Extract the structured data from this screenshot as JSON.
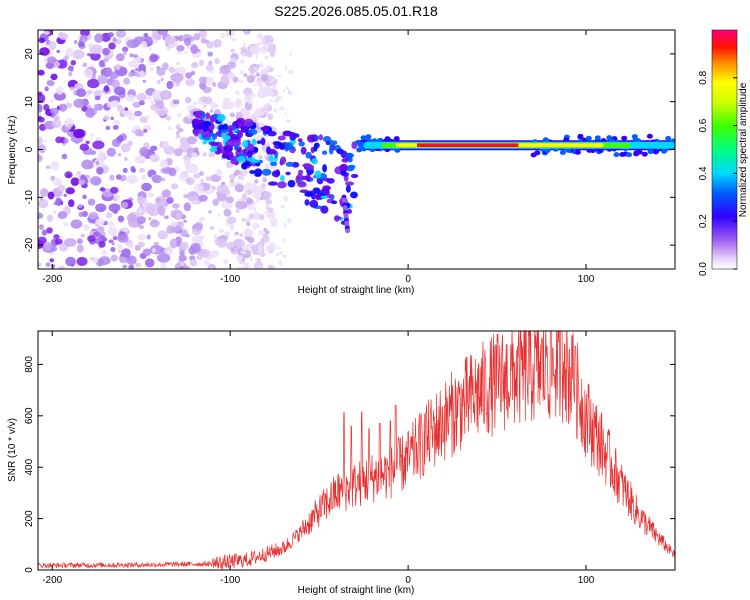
{
  "figure": {
    "title": "S225.2026.085.05.01.R18"
  },
  "chart_data": [
    {
      "type": "heatmap",
      "title": "",
      "xlabel": "Height of straight line (km)",
      "ylabel": "Frequency (Hz)",
      "xlim": [
        -208,
        150
      ],
      "ylim": [
        -25,
        25
      ],
      "xticks": [
        -200,
        -100,
        0,
        100
      ],
      "yticks": [
        -20,
        -10,
        0,
        10,
        20
      ],
      "xtick_labels": [
        "-200",
        "-100",
        "0",
        "100"
      ],
      "ytick_labels": [
        "-20",
        "-10",
        "0",
        "10",
        "20"
      ],
      "colorbar": {
        "label": "Normalized spectral amplitude",
        "range": [
          0,
          1
        ],
        "ticks": [
          0.0,
          0.2,
          0.4,
          0.6,
          0.8
        ],
        "tick_labels": [
          "0.0",
          "0.2",
          "0.4",
          "0.6",
          "0.8"
        ],
        "colormap": [
          "#ffffff",
          "#c8a8f0",
          "#7b20e8",
          "#0000ff",
          "#00d8ff",
          "#00ff60",
          "#c0ff00",
          "#ffff00",
          "#ff8000",
          "#ff0000",
          "#ff0080"
        ]
      },
      "features": {
        "noise_region_x": [
          -208,
          -75
        ],
        "noise_region_y": [
          -25,
          25
        ],
        "scatter_band_x": [
          -120,
          -30
        ],
        "scatter_band_y_start": 5,
        "scatter_band_y_end": -12,
        "tail_x": [
          -36,
          -34
        ],
        "tail_y": [
          -10,
          -17
        ],
        "ridge_x": [
          -25,
          150
        ],
        "ridge_freq": [
          0.5,
          1.0
        ],
        "ridge_peak_x": [
          5,
          62
        ],
        "ridge_peak_value": 1.0
      }
    },
    {
      "type": "line",
      "title": "",
      "xlabel": "Height of straight line (km)",
      "ylabel": "SNR (10 * v/v)",
      "xlim": [
        -208,
        150
      ],
      "ylim": [
        0,
        930
      ],
      "xticks": [
        -200,
        -100,
        0,
        100
      ],
      "yticks": [
        0,
        200,
        400,
        600,
        800
      ],
      "xtick_labels": [
        "-200",
        "-100",
        "0",
        "100"
      ],
      "ytick_labels": [
        "0",
        "200",
        "400",
        "600",
        "800"
      ],
      "series": [
        {
          "name": "SNR",
          "color": "#e83030",
          "envelope_x": [
            -208,
            -150,
            -110,
            -90,
            -70,
            -60,
            -50,
            -40,
            -30,
            -20,
            -10,
            0,
            10,
            20,
            30,
            40,
            50,
            60,
            70,
            80,
            86,
            90,
            95,
            100,
            110,
            120,
            130,
            140,
            150
          ],
          "envelope_y": [
            18,
            20,
            24,
            40,
            85,
            150,
            230,
            300,
            330,
            360,
            380,
            430,
            510,
            580,
            640,
            690,
            730,
            760,
            780,
            790,
            800,
            770,
            700,
            600,
            470,
            330,
            210,
            130,
            55
          ],
          "spikes": [
            {
              "x": -36,
              "y": 612
            },
            {
              "x": -32,
              "y": 560
            },
            {
              "x": -26,
              "y": 615
            },
            {
              "x": -22,
              "y": 550
            },
            {
              "x": -16,
              "y": 570
            },
            {
              "x": -10,
              "y": 580
            },
            {
              "x": -7,
              "y": 640
            },
            {
              "x": 10,
              "y": 610
            },
            {
              "x": 78,
              "y": 870
            },
            {
              "x": 88,
              "y": 880
            },
            {
              "x": 92,
              "y": 912
            },
            {
              "x": 94,
              "y": 870
            }
          ]
        }
      ]
    }
  ]
}
